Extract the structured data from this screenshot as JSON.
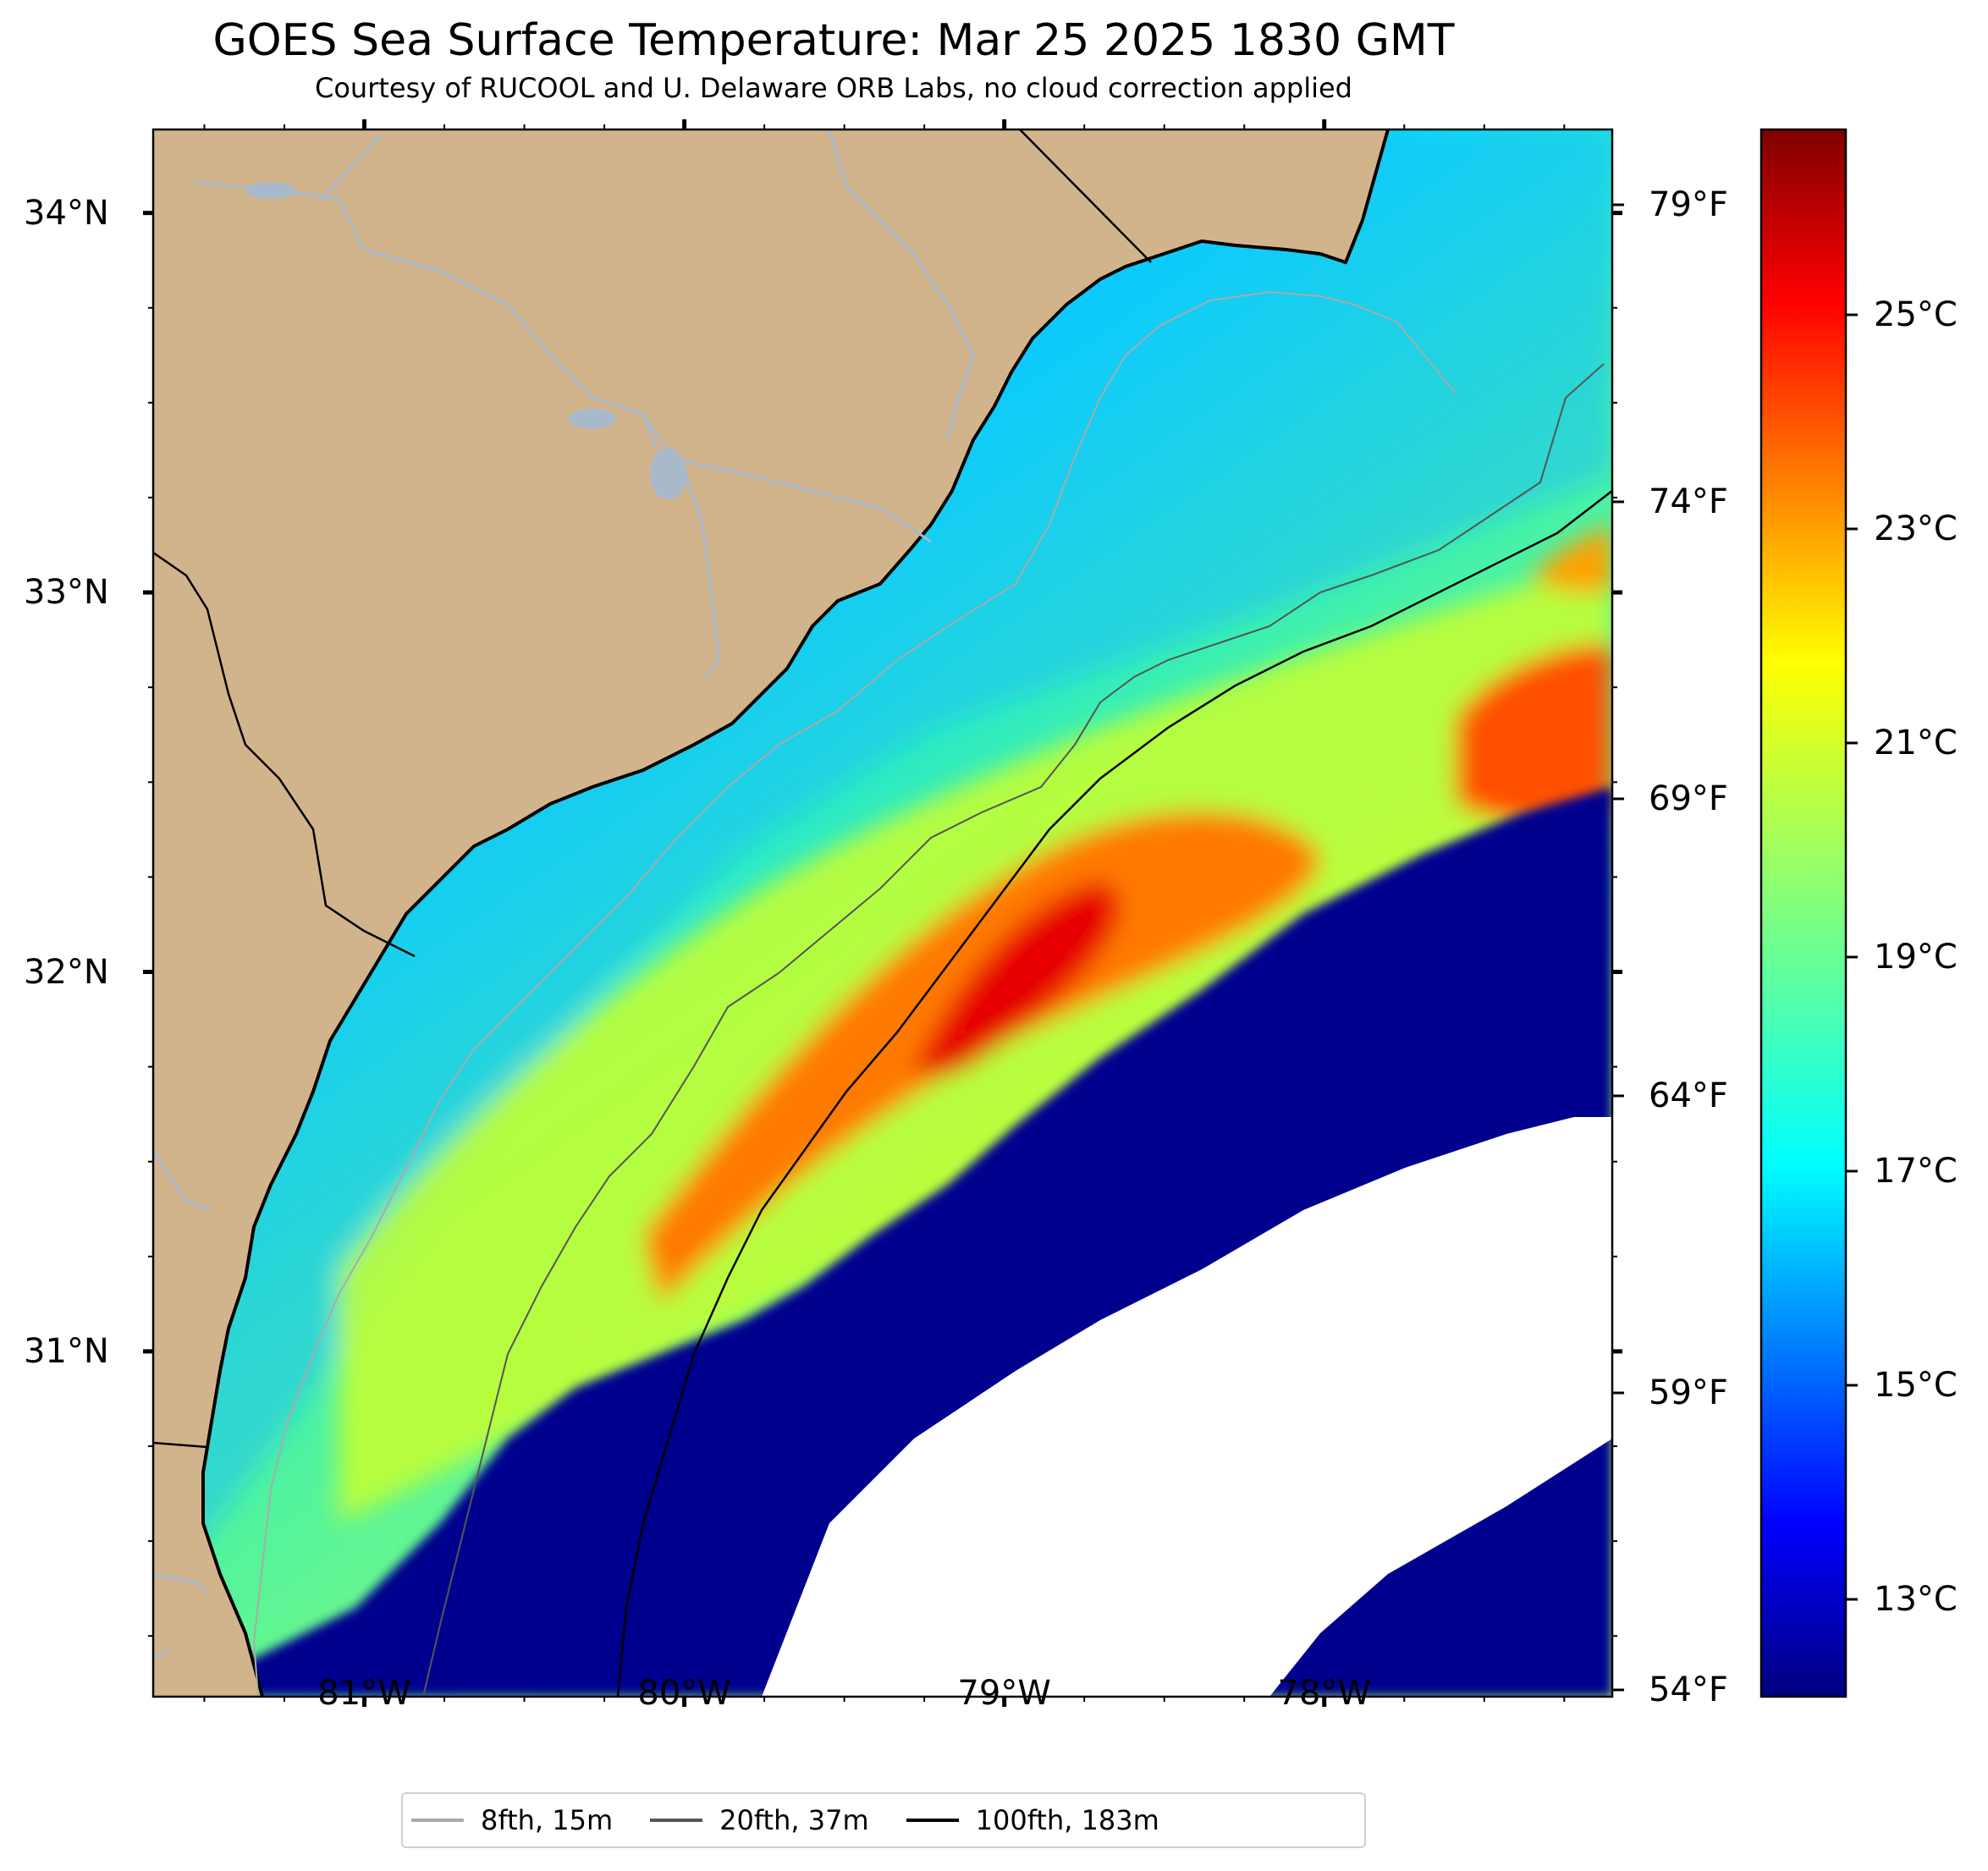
{
  "header": {
    "title": "GOES Sea Surface Temperature: Mar 25 2025 1830 GMT",
    "subtitle": "Courtesy of RUCOOL and U. Delaware ORB Labs, no cloud correction applied"
  },
  "map": {
    "extent": {
      "lon_min": -81.66,
      "lon_max": -77.1,
      "lat_min": 30.09,
      "lat_max": 34.22
    },
    "lat_ticks": [
      {
        "value": 34,
        "label": "34°N"
      },
      {
        "value": 33,
        "label": "33°N"
      },
      {
        "value": 32,
        "label": "32°N"
      },
      {
        "value": 31,
        "label": "31°N"
      }
    ],
    "lon_ticks": [
      {
        "value": -81,
        "label": "81°W"
      },
      {
        "value": -80,
        "label": "80°W"
      },
      {
        "value": -79,
        "label": "79°W"
      },
      {
        "value": -78,
        "label": "78°W"
      }
    ],
    "colors": {
      "land": "#d2b48c",
      "coastline": "#000000",
      "rivers": "#a9b9cc",
      "no_data": "#ffffff"
    },
    "features": [
      "coastline",
      "state-borders",
      "rivers",
      "lakes",
      "bathymetry-contours"
    ]
  },
  "right_axis": {
    "unit": "°F",
    "ticks": [
      {
        "value": 79,
        "label": "79°F"
      },
      {
        "value": 74,
        "label": "74°F"
      },
      {
        "value": 69,
        "label": "69°F"
      },
      {
        "value": 64,
        "label": "64°F"
      },
      {
        "value": 59,
        "label": "59°F"
      },
      {
        "value": 54,
        "label": "54°F"
      }
    ]
  },
  "colorbar": {
    "colormap": "jet",
    "ticks": [
      {
        "value": 25,
        "label": "25°C"
      },
      {
        "value": 23,
        "label": "23°C"
      },
      {
        "value": 21,
        "label": "21°C"
      },
      {
        "value": 19,
        "label": "19°C"
      },
      {
        "value": 17,
        "label": "17°C"
      },
      {
        "value": 15,
        "label": "15°C"
      },
      {
        "value": 13,
        "label": "13°C"
      }
    ]
  },
  "legend": {
    "placement": "bottom-center",
    "items": [
      {
        "label": "8fth, 15m",
        "color": "#aaaaaa"
      },
      {
        "label": "20fth, 37m",
        "color": "#555555"
      },
      {
        "label": "100fth, 183m",
        "color": "#000000"
      }
    ]
  }
}
